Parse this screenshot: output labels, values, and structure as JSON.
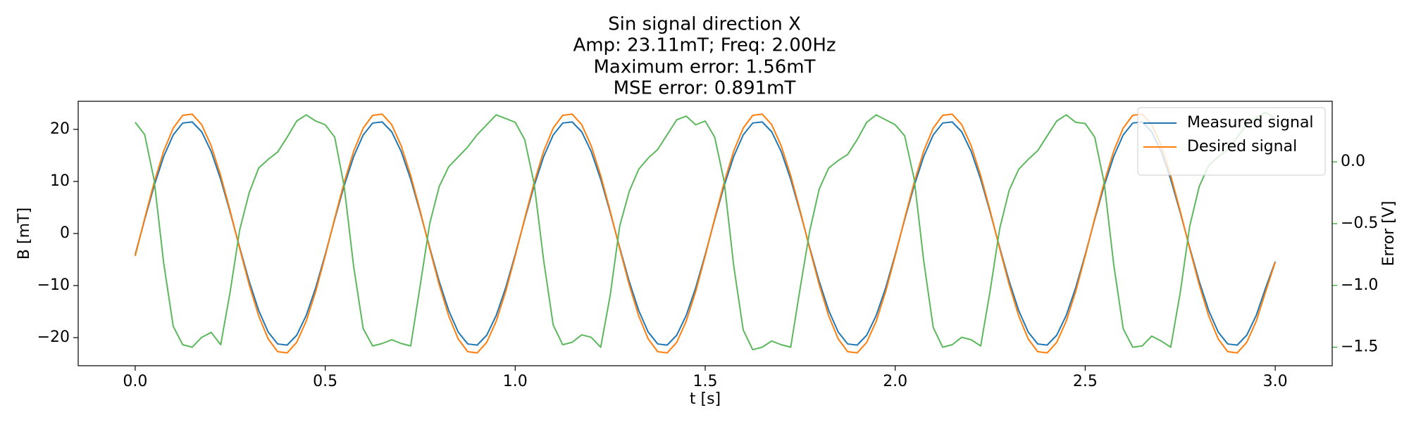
{
  "chart_data": {
    "type": "line",
    "title": [
      "Sin signal direction X",
      "Amp: 23.11mT; Freq: 2.00Hz",
      "Maximum error: 1.56mT",
      "MSE error: 0.891mT"
    ],
    "xlabel": "t [s]",
    "ylabel": "B [mT]",
    "y2label": "Error [V]",
    "legend": "upper right",
    "grid": false,
    "x": [
      0,
      0.025,
      0.05,
      0.075,
      0.1,
      0.125,
      0.15,
      0.175,
      0.2,
      0.225,
      0.25,
      0.275,
      0.3,
      0.325,
      0.35,
      0.375,
      0.4,
      0.425,
      0.45,
      0.475,
      0.5,
      0.525,
      0.55,
      0.575,
      0.6,
      0.625,
      0.65,
      0.675,
      0.7,
      0.725,
      0.75,
      0.775,
      0.8,
      0.825,
      0.85,
      0.875,
      0.9,
      0.925,
      0.95,
      0.975,
      1,
      1.025,
      1.05,
      1.075,
      1.1,
      1.125,
      1.15,
      1.175,
      1.2,
      1.225,
      1.25,
      1.275,
      1.3,
      1.325,
      1.35,
      1.375,
      1.4,
      1.425,
      1.45,
      1.475,
      1.5,
      1.525,
      1.55,
      1.575,
      1.6,
      1.625,
      1.65,
      1.675,
      1.7,
      1.725,
      1.75,
      1.775,
      1.8,
      1.825,
      1.85,
      1.875,
      1.9,
      1.925,
      1.95,
      1.975,
      2,
      2.025,
      2.05,
      2.075,
      2.1,
      2.125,
      2.15,
      2.175,
      2.2,
      2.225,
      2.25,
      2.275,
      2.3,
      2.325,
      2.35,
      2.375,
      2.4,
      2.425,
      2.45,
      2.475,
      2.5,
      2.525,
      2.55,
      2.575,
      2.6,
      2.625,
      2.65,
      2.675,
      2.7,
      2.725,
      2.75,
      2.775,
      2.8,
      2.825,
      2.85,
      2.875,
      2.9,
      2.925,
      2.95,
      2.975,
      3
    ],
    "xlim": [
      -0.15,
      3.15
    ],
    "xticks": [
      {
        "value": 0,
        "label": "0.0"
      },
      {
        "value": 0.5,
        "label": "0.5"
      },
      {
        "value": 1,
        "label": "1.0"
      },
      {
        "value": 1.5,
        "label": "1.5"
      },
      {
        "value": 2,
        "label": "2.0"
      },
      {
        "value": 2.5,
        "label": "2.5"
      },
      {
        "value": 3,
        "label": "3.0"
      }
    ],
    "ylim": [
      -25.4,
      25.4
    ],
    "yticks": [
      {
        "value": -20,
        "label": "−20"
      },
      {
        "value": -10,
        "label": "−10"
      },
      0,
      10,
      20
    ],
    "y2lim": [
      -1.65,
      0.49
    ],
    "y2ticks": [
      {
        "value": -1.5,
        "label": "−1.5"
      },
      {
        "value": -1,
        "label": "−1.0"
      },
      {
        "value": -0.5,
        "label": "−0.5"
      },
      {
        "value": 0,
        "label": "0.0"
      }
    ],
    "y2color": "#2ca02c",
    "series": [
      {
        "name": "Measured signal",
        "color": "#1f77b4",
        "values": [
          -4.05,
          2.71,
          9.2,
          14.79,
          18.93,
          21.22,
          21.43,
          19.54,
          15.75,
          10.41,
          4.05,
          -2.71,
          -9.2,
          -14.79,
          -18.93,
          -21.22,
          -21.43,
          -19.54,
          -15.75,
          -10.41,
          -4.05,
          2.71,
          9.2,
          14.79,
          18.93,
          21.22,
          21.43,
          19.54,
          15.75,
          10.41,
          4.05,
          -2.71,
          -9.2,
          -14.79,
          -18.93,
          -21.22,
          -21.43,
          -19.54,
          -15.75,
          -10.41,
          -4.05,
          2.71,
          9.2,
          14.79,
          18.93,
          21.22,
          21.43,
          19.54,
          15.75,
          10.41,
          4.05,
          -2.71,
          -9.2,
          -14.79,
          -18.93,
          -21.22,
          -21.43,
          -19.54,
          -15.75,
          -10.41,
          -4.05,
          2.71,
          9.2,
          14.79,
          18.93,
          21.22,
          21.43,
          19.54,
          15.75,
          10.41,
          4.05,
          -2.71,
          -9.2,
          -14.79,
          -18.93,
          -21.22,
          -21.43,
          -19.54,
          -15.75,
          -10.41,
          -4.05,
          2.71,
          9.2,
          14.79,
          18.93,
          21.22,
          21.43,
          19.54,
          15.75,
          10.41,
          4.05,
          -2.71,
          -9.2,
          -14.79,
          -18.93,
          -21.22,
          -21.43,
          -19.54,
          -15.75,
          -10.41,
          -4.05,
          2.71,
          9.2,
          14.79,
          18.93,
          21.22,
          21.43,
          19.54,
          15.75,
          10.41,
          4.05,
          -2.71,
          -9.2,
          -14.79,
          -18.93,
          -21.22,
          -21.43,
          -19.54,
          -15.75,
          -10.41,
          -5.4
        ]
      },
      {
        "name": "Desired signal",
        "color": "#ff7f0e",
        "values": [
          -4.33,
          2.9,
          9.84,
          15.82,
          20.25,
          22.7,
          22.93,
          20.91,
          16.85,
          11.13,
          4.33,
          -2.9,
          -9.84,
          -15.82,
          -20.25,
          -22.7,
          -22.93,
          -20.91,
          -16.85,
          -11.13,
          -4.33,
          2.9,
          9.84,
          15.82,
          20.25,
          22.7,
          22.93,
          20.91,
          16.85,
          11.13,
          4.33,
          -2.9,
          -9.84,
          -15.82,
          -20.25,
          -22.7,
          -22.93,
          -20.91,
          -16.85,
          -11.13,
          -4.33,
          2.9,
          9.84,
          15.82,
          20.25,
          22.7,
          22.93,
          20.91,
          16.85,
          11.13,
          4.33,
          -2.9,
          -9.84,
          -15.82,
          -20.25,
          -22.7,
          -22.93,
          -20.91,
          -16.85,
          -11.13,
          -4.33,
          2.9,
          9.84,
          15.82,
          20.25,
          22.7,
          22.93,
          20.91,
          16.85,
          11.13,
          4.33,
          -2.9,
          -9.84,
          -15.82,
          -20.25,
          -22.7,
          -22.93,
          -20.91,
          -16.85,
          -11.13,
          -4.33,
          2.9,
          9.84,
          15.82,
          20.25,
          22.7,
          22.93,
          20.91,
          16.85,
          11.13,
          4.33,
          -2.9,
          -9.84,
          -15.82,
          -20.25,
          -22.7,
          -22.93,
          -20.91,
          -16.85,
          -11.13,
          -4.33,
          2.9,
          9.84,
          15.82,
          20.25,
          22.7,
          22.93,
          20.91,
          16.85,
          11.13,
          4.33,
          -2.9,
          -9.84,
          -15.82,
          -20.25,
          -22.7,
          -22.93,
          -20.91,
          -16.85,
          -11.13,
          -5.5
        ]
      },
      {
        "name": "Error",
        "color": "#5cb85c",
        "axis": "y2",
        "values": [
          0.32,
          0.22,
          -0.15,
          -0.82,
          -1.33,
          -1.48,
          -1.5,
          -1.42,
          -1.38,
          -1.48,
          -1.05,
          -0.55,
          -0.25,
          -0.05,
          0.02,
          0.08,
          0.2,
          0.33,
          0.38,
          0.33,
          0.3,
          0.2,
          -0.2,
          -0.85,
          -1.35,
          -1.49,
          -1.47,
          -1.44,
          -1.47,
          -1.49,
          -1.0,
          -0.5,
          -0.2,
          -0.04,
          0.04,
          0.12,
          0.22,
          0.3,
          0.38,
          0.35,
          0.32,
          0.18,
          -0.18,
          -0.8,
          -1.32,
          -1.48,
          -1.46,
          -1.4,
          -1.42,
          -1.5,
          -1.08,
          -0.52,
          -0.24,
          -0.06,
          0.03,
          0.1,
          0.22,
          0.34,
          0.37,
          0.3,
          0.33,
          0.2,
          -0.16,
          -0.84,
          -1.36,
          -1.52,
          -1.5,
          -1.45,
          -1.48,
          -1.5,
          -1.02,
          -0.56,
          -0.22,
          -0.05,
          0.01,
          0.06,
          0.18,
          0.32,
          0.38,
          0.34,
          0.3,
          0.21,
          -0.14,
          -0.8,
          -1.34,
          -1.5,
          -1.48,
          -1.42,
          -1.44,
          -1.49,
          -1.04,
          -0.54,
          -0.23,
          -0.06,
          0.02,
          0.09,
          0.21,
          0.33,
          0.38,
          0.32,
          0.31,
          0.2,
          -0.17,
          -0.83,
          -1.35,
          -1.5,
          -1.49,
          -1.41,
          -1.45,
          -1.5,
          -1.06,
          -0.52,
          -0.2,
          -0.03,
          0.04,
          0.1,
          0.2,
          0.3,
          0.36,
          0.4,
          0.35
        ]
      }
    ]
  }
}
